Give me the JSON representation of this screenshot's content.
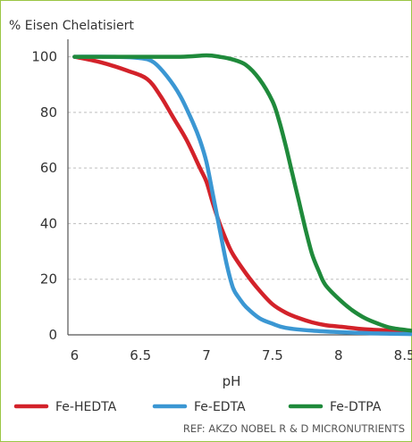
{
  "chart_data": {
    "type": "line",
    "title": "% Eisen Chelatisiert",
    "xlabel": "pH",
    "ylabel": "",
    "xlim": [
      5.95,
      8.55
    ],
    "ylim": [
      0,
      105
    ],
    "xticks": [
      6,
      6.5,
      7,
      7.5,
      8,
      8.5
    ],
    "xtick_labels": [
      "6",
      "6.5",
      "7",
      "7.5",
      "8",
      "8.5"
    ],
    "yticks": [
      0,
      20,
      40,
      60,
      80,
      100
    ],
    "grid": "horizontal dashed",
    "legend_position": "bottom",
    "series": [
      {
        "name": "Fe-HEDTA",
        "color": "#d3222a",
        "x": [
          6.0,
          6.2,
          6.4,
          6.55,
          6.65,
          6.75,
          6.85,
          6.95,
          7.0,
          7.05,
          7.1,
          7.15,
          7.2,
          7.3,
          7.4,
          7.5,
          7.6,
          7.7,
          7.8,
          7.9,
          8.0,
          8.2,
          8.4,
          8.55
        ],
        "y": [
          100,
          98,
          95,
          92,
          86,
          78,
          70,
          60,
          55,
          47,
          40,
          34,
          29,
          22,
          16,
          11,
          8,
          6,
          4.5,
          3.5,
          3,
          2,
          1.5,
          1.2
        ]
      },
      {
        "name": "Fe-EDTA",
        "color": "#3b97d3",
        "x": [
          6.0,
          6.3,
          6.5,
          6.6,
          6.7,
          6.8,
          6.9,
          6.95,
          7.0,
          7.05,
          7.1,
          7.15,
          7.2,
          7.25,
          7.3,
          7.4,
          7.5,
          7.6,
          7.8,
          8.0,
          8.3,
          8.55
        ],
        "y": [
          100,
          100,
          99.5,
          98,
          93,
          86,
          76,
          70,
          62,
          50,
          38,
          26,
          17,
          13,
          10,
          6,
          4,
          2.5,
          1.5,
          1,
          0.5,
          0.3
        ]
      },
      {
        "name": "Fe-DTPA",
        "color": "#1f8a3b",
        "x": [
          6.0,
          6.4,
          6.8,
          7.0,
          7.1,
          7.2,
          7.3,
          7.4,
          7.5,
          7.55,
          7.6,
          7.65,
          7.7,
          7.75,
          7.8,
          7.85,
          7.9,
          8.0,
          8.1,
          8.2,
          8.3,
          8.4,
          8.55
        ],
        "y": [
          100,
          100,
          100,
          100.5,
          100,
          99,
          97,
          92,
          84,
          77,
          68,
          58,
          48,
          38,
          29,
          23,
          18,
          13,
          9,
          6,
          4,
          2.5,
          1.5
        ]
      }
    ]
  },
  "reference": "REF: AKZO NOBEL R & D MICRONUTRIENTS",
  "colors": {
    "frame_border": "#9bc644",
    "grid": "#bdbdbd",
    "axis": "#555555"
  }
}
